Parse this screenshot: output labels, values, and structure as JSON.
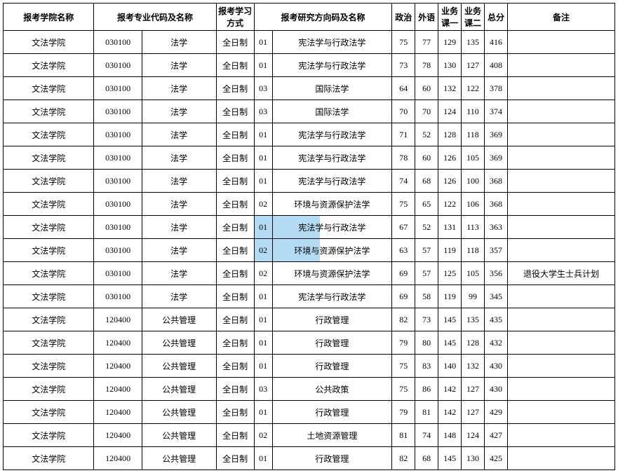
{
  "table": {
    "headers": {
      "college": "报考学院名称",
      "major": "报考专业代码及名称",
      "study_mode": "报考学习方式",
      "direction": "报考研究方向码及名称",
      "politics": "政治",
      "foreign_lang": "外语",
      "course1": "业务课一",
      "course2": "业务课二",
      "total": "总分",
      "note": "备注"
    },
    "rows": [
      {
        "college": "文法学院",
        "code": "030100",
        "major": "法学",
        "mode": "全日制",
        "dcode": "01",
        "dname": "宪法学与行政法学",
        "s1": "75",
        "s2": "77",
        "s3": "129",
        "s4": "135",
        "tot": "416",
        "note": "",
        "wm": 0
      },
      {
        "college": "文法学院",
        "code": "030100",
        "major": "法学",
        "mode": "全日制",
        "dcode": "01",
        "dname": "宪法学与行政法学",
        "s1": "73",
        "s2": "78",
        "s3": "130",
        "s4": "127",
        "tot": "408",
        "note": "",
        "wm": 0
      },
      {
        "college": "文法学院",
        "code": "030100",
        "major": "法学",
        "mode": "全日制",
        "dcode": "03",
        "dname": "国际法学",
        "s1": "64",
        "s2": "60",
        "s3": "132",
        "s4": "122",
        "tot": "378",
        "note": "",
        "wm": 0
      },
      {
        "college": "文法学院",
        "code": "030100",
        "major": "法学",
        "mode": "全日制",
        "dcode": "03",
        "dname": "国际法学",
        "s1": "70",
        "s2": "70",
        "s3": "124",
        "s4": "110",
        "tot": "374",
        "note": "",
        "wm": 0
      },
      {
        "college": "文法学院",
        "code": "030100",
        "major": "法学",
        "mode": "全日制",
        "dcode": "01",
        "dname": "宪法学与行政法学",
        "s1": "71",
        "s2": "52",
        "s3": "128",
        "s4": "118",
        "tot": "369",
        "note": "",
        "wm": 0
      },
      {
        "college": "文法学院",
        "code": "030100",
        "major": "法学",
        "mode": "全日制",
        "dcode": "01",
        "dname": "宪法学与行政法学",
        "s1": "78",
        "s2": "60",
        "s3": "126",
        "s4": "105",
        "tot": "369",
        "note": "",
        "wm": 0
      },
      {
        "college": "文法学院",
        "code": "030100",
        "major": "法学",
        "mode": "全日制",
        "dcode": "01",
        "dname": "宪法学与行政法学",
        "s1": "74",
        "s2": "68",
        "s3": "126",
        "s4": "100",
        "tot": "368",
        "note": "",
        "wm": 0
      },
      {
        "college": "文法学院",
        "code": "030100",
        "major": "法学",
        "mode": "全日制",
        "dcode": "02",
        "dname": "环境与资源保护法学",
        "s1": "75",
        "s2": "65",
        "s3": "122",
        "s4": "106",
        "tot": "368",
        "note": "",
        "wm": 0
      },
      {
        "college": "文法学院",
        "code": "030100",
        "major": "法学",
        "mode": "全日制",
        "dcode": "01",
        "dname": "宪法学与行政法学",
        "s1": "67",
        "s2": "52",
        "s3": "131",
        "s4": "113",
        "tot": "363",
        "note": "",
        "wm": 1
      },
      {
        "college": "文法学院",
        "code": "030100",
        "major": "法学",
        "mode": "全日制",
        "dcode": "02",
        "dname": "环境与资源保护法学",
        "s1": "63",
        "s2": "57",
        "s3": "119",
        "s4": "118",
        "tot": "357",
        "note": "",
        "wm": 2
      },
      {
        "college": "文法学院",
        "code": "030100",
        "major": "法学",
        "mode": "全日制",
        "dcode": "02",
        "dname": "环境与资源保护法学",
        "s1": "69",
        "s2": "57",
        "s3": "125",
        "s4": "105",
        "tot": "356",
        "note": "退役大学生士兵计划",
        "wm": 0
      },
      {
        "college": "文法学院",
        "code": "030100",
        "major": "法学",
        "mode": "全日制",
        "dcode": "01",
        "dname": "宪法学与行政法学",
        "s1": "69",
        "s2": "58",
        "s3": "119",
        "s4": "99",
        "tot": "345",
        "note": "",
        "wm": 0
      },
      {
        "college": "文法学院",
        "code": "120400",
        "major": "公共管理",
        "mode": "全日制",
        "dcode": "01",
        "dname": "行政管理",
        "s1": "82",
        "s2": "73",
        "s3": "145",
        "s4": "135",
        "tot": "435",
        "note": "",
        "wm": 0
      },
      {
        "college": "文法学院",
        "code": "120400",
        "major": "公共管理",
        "mode": "全日制",
        "dcode": "01",
        "dname": "行政管理",
        "s1": "79",
        "s2": "80",
        "s3": "145",
        "s4": "128",
        "tot": "432",
        "note": "",
        "wm": 0
      },
      {
        "college": "文法学院",
        "code": "120400",
        "major": "公共管理",
        "mode": "全日制",
        "dcode": "01",
        "dname": "行政管理",
        "s1": "75",
        "s2": "83",
        "s3": "140",
        "s4": "132",
        "tot": "430",
        "note": "",
        "wm": 0
      },
      {
        "college": "文法学院",
        "code": "120400",
        "major": "公共管理",
        "mode": "全日制",
        "dcode": "03",
        "dname": "公共政策",
        "s1": "75",
        "s2": "86",
        "s3": "142",
        "s4": "127",
        "tot": "430",
        "note": "",
        "wm": 0
      },
      {
        "college": "文法学院",
        "code": "120400",
        "major": "公共管理",
        "mode": "全日制",
        "dcode": "01",
        "dname": "行政管理",
        "s1": "79",
        "s2": "81",
        "s3": "142",
        "s4": "127",
        "tot": "429",
        "note": "",
        "wm": 0
      },
      {
        "college": "文法学院",
        "code": "120400",
        "major": "公共管理",
        "mode": "全日制",
        "dcode": "02",
        "dname": "土地资源管理",
        "s1": "81",
        "s2": "74",
        "s3": "148",
        "s4": "124",
        "tot": "427",
        "note": "",
        "wm": 0
      },
      {
        "college": "文法学院",
        "code": "120400",
        "major": "公共管理",
        "mode": "全日制",
        "dcode": "01",
        "dname": "行政管理",
        "s1": "82",
        "s2": "68",
        "s3": "145",
        "s4": "130",
        "tot": "425",
        "note": "",
        "wm": 0
      }
    ],
    "watermark_color": "#5aafe6"
  }
}
